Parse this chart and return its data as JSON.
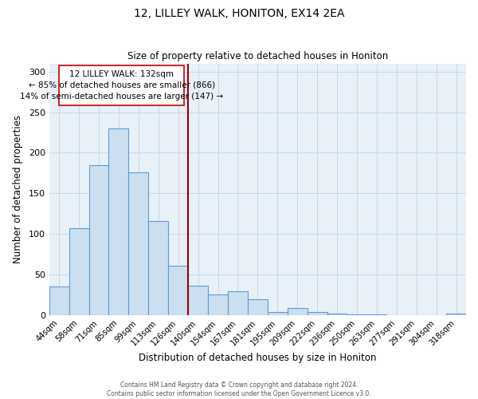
{
  "title": "12, LILLEY WALK, HONITON, EX14 2EA",
  "subtitle": "Size of property relative to detached houses in Honiton",
  "xlabel": "Distribution of detached houses by size in Honiton",
  "ylabel": "Number of detached properties",
  "bar_color": "#ccdff0",
  "bar_edge_color": "#5b9bd5",
  "categories": [
    "44sqm",
    "58sqm",
    "71sqm",
    "85sqm",
    "99sqm",
    "113sqm",
    "126sqm",
    "140sqm",
    "154sqm",
    "167sqm",
    "181sqm",
    "195sqm",
    "209sqm",
    "222sqm",
    "236sqm",
    "250sqm",
    "263sqm",
    "277sqm",
    "291sqm",
    "304sqm",
    "318sqm"
  ],
  "values": [
    35,
    107,
    185,
    230,
    176,
    116,
    61,
    36,
    25,
    29,
    19,
    4,
    8,
    4,
    2,
    1,
    1,
    0,
    0,
    0,
    2
  ],
  "vline_color": "#990000",
  "annotation_line1": "12 LILLEY WALK: 132sqm",
  "annotation_line2": "← 85% of detached houses are smaller (866)",
  "annotation_line3": "14% of semi-detached houses are larger (147) →",
  "annotation_box_facecolor": "#ffffff",
  "annotation_box_edgecolor": "#cc0000",
  "ylim": [
    0,
    310
  ],
  "yticks": [
    0,
    50,
    100,
    150,
    200,
    250,
    300
  ],
  "grid_color": "#c8d8e8",
  "bg_color": "#e8f0f8",
  "footer1": "Contains HM Land Registry data © Crown copyright and database right 2024.",
  "footer2": "Contains public sector information licensed under the Open Government Licence v3.0."
}
